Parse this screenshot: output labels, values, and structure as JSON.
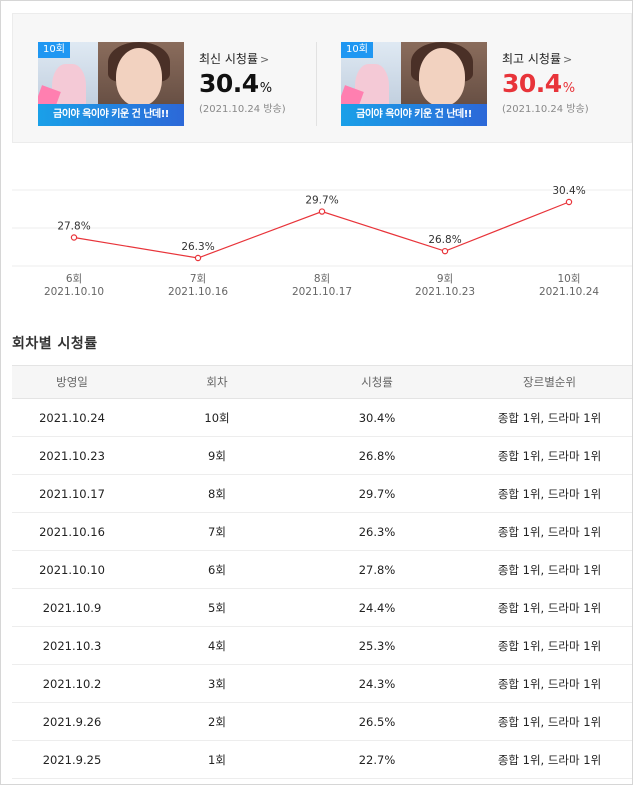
{
  "cards": [
    {
      "episode_badge": "10회",
      "thumbnail_caption": "금이야 옥이야 키운 건 난데!!",
      "label": "최신 시청률",
      "chevron": ">",
      "value": "30.4",
      "unit": "%",
      "date": "(2021.10.24 방송)",
      "value_color": "#111111"
    },
    {
      "episode_badge": "10회",
      "thumbnail_caption": "금이야 옥이야 키운 건 난데!!",
      "label": "최고 시청률",
      "chevron": ">",
      "value": "30.4",
      "unit": "%",
      "date": "(2021.10.24 방송)",
      "value_color": "#e8343a"
    }
  ],
  "chart_data": {
    "type": "line",
    "categories": [
      "6회",
      "7회",
      "8회",
      "9회",
      "10회"
    ],
    "dates": [
      "2021.10.10",
      "2021.10.16",
      "2021.10.17",
      "2021.10.23",
      "2021.10.24"
    ],
    "values": [
      27.8,
      26.3,
      29.7,
      26.8,
      30.4
    ],
    "data_labels": [
      "27.8%",
      "26.3%",
      "29.7%",
      "26.8%",
      "30.4%"
    ],
    "line_color": "#e8343a",
    "grid": true
  },
  "section_title": "회차별 시청률",
  "table": {
    "headers": [
      "방영일",
      "회차",
      "시청률",
      "장르별순위"
    ],
    "rows": [
      [
        "2021.10.24",
        "10회",
        "30.4%",
        "종합 1위, 드라마 1위"
      ],
      [
        "2021.10.23",
        "9회",
        "26.8%",
        "종합 1위, 드라마 1위"
      ],
      [
        "2021.10.17",
        "8회",
        "29.7%",
        "종합 1위, 드라마 1위"
      ],
      [
        "2021.10.16",
        "7회",
        "26.3%",
        "종합 1위, 드라마 1위"
      ],
      [
        "2021.10.10",
        "6회",
        "27.8%",
        "종합 1위, 드라마 1위"
      ],
      [
        "2021.10.9",
        "5회",
        "24.4%",
        "종합 1위, 드라마 1위"
      ],
      [
        "2021.10.3",
        "4회",
        "25.3%",
        "종합 1위, 드라마 1위"
      ],
      [
        "2021.10.2",
        "3회",
        "24.3%",
        "종합 1위, 드라마 1위"
      ],
      [
        "2021.9.26",
        "2회",
        "26.5%",
        "종합 1위, 드라마 1위"
      ],
      [
        "2021.9.25",
        "1회",
        "22.7%",
        "종합 1위, 드라마 1위"
      ]
    ]
  }
}
